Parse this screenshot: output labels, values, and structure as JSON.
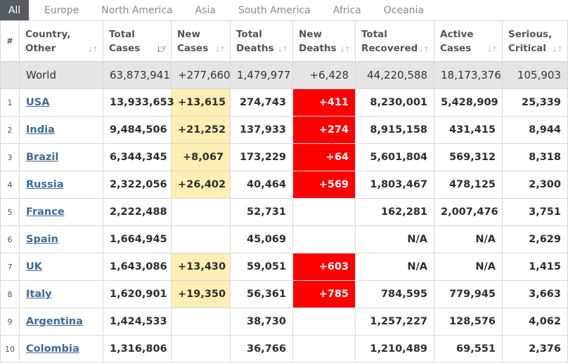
{
  "tabs": [
    "All",
    "Europe",
    "North America",
    "Asia",
    "South America",
    "Africa",
    "Oceania"
  ],
  "headers": {
    "num": "#",
    "country": [
      "Country,",
      "Other"
    ],
    "total_cases": [
      "Total",
      "Cases"
    ],
    "new_cases": [
      "New",
      "Cases"
    ],
    "total_deaths": [
      "Total",
      "Deaths"
    ],
    "new_deaths": [
      "New",
      "Deaths"
    ],
    "total_recovered": [
      "Total",
      "Recovered"
    ],
    "active_cases": [
      "Active",
      "Cases"
    ],
    "serious_critical": [
      "Serious,",
      "Critical"
    ]
  },
  "world": {
    "country": "World",
    "total_cases": "63,873,941",
    "new_cases": "+277,660",
    "total_deaths": "1,479,977",
    "new_deaths": "+6,428",
    "total_recovered": "44,220,588",
    "active_cases": "18,173,376",
    "serious_critical": "105,903"
  },
  "rows": [
    {
      "rank": "1",
      "country": "USA",
      "total_cases": "13,933,653",
      "new_cases": "+13,615",
      "total_deaths": "274,743",
      "new_deaths": "+411",
      "total_recovered": "8,230,001",
      "active_cases": "5,428,909",
      "serious_critical": "25,339"
    },
    {
      "rank": "2",
      "country": "India",
      "total_cases": "9,484,506",
      "new_cases": "+21,252",
      "total_deaths": "137,933",
      "new_deaths": "+274",
      "total_recovered": "8,915,158",
      "active_cases": "431,415",
      "serious_critical": "8,944"
    },
    {
      "rank": "3",
      "country": "Brazil",
      "total_cases": "6,344,345",
      "new_cases": "+8,067",
      "total_deaths": "173,229",
      "new_deaths": "+64",
      "total_recovered": "5,601,804",
      "active_cases": "569,312",
      "serious_critical": "8,318"
    },
    {
      "rank": "4",
      "country": "Russia",
      "total_cases": "2,322,056",
      "new_cases": "+26,402",
      "total_deaths": "40,464",
      "new_deaths": "+569",
      "total_recovered": "1,803,467",
      "active_cases": "478,125",
      "serious_critical": "2,300"
    },
    {
      "rank": "5",
      "country": "France",
      "total_cases": "2,222,488",
      "new_cases": "",
      "total_deaths": "52,731",
      "new_deaths": "",
      "total_recovered": "162,281",
      "active_cases": "2,007,476",
      "serious_critical": "3,751"
    },
    {
      "rank": "6",
      "country": "Spain",
      "total_cases": "1,664,945",
      "new_cases": "",
      "total_deaths": "45,069",
      "new_deaths": "",
      "total_recovered": "N/A",
      "active_cases": "N/A",
      "serious_critical": "2,629"
    },
    {
      "rank": "7",
      "country": "UK",
      "total_cases": "1,643,086",
      "new_cases": "+13,430",
      "total_deaths": "59,051",
      "new_deaths": "+603",
      "total_recovered": "N/A",
      "active_cases": "N/A",
      "serious_critical": "1,415"
    },
    {
      "rank": "8",
      "country": "Italy",
      "total_cases": "1,620,901",
      "new_cases": "+19,350",
      "total_deaths": "56,361",
      "new_deaths": "+785",
      "total_recovered": "784,595",
      "active_cases": "779,945",
      "serious_critical": "3,663"
    },
    {
      "rank": "9",
      "country": "Argentina",
      "total_cases": "1,424,533",
      "new_cases": "",
      "total_deaths": "38,730",
      "new_deaths": "",
      "total_recovered": "1,257,227",
      "active_cases": "128,576",
      "serious_critical": "4,062"
    },
    {
      "rank": "10",
      "country": "Colombia",
      "total_cases": "1,316,806",
      "new_cases": "",
      "total_deaths": "36,766",
      "new_deaths": "",
      "total_recovered": "1,210,489",
      "active_cases": "69,551",
      "serious_critical": "2,376"
    }
  ],
  "colors": {
    "new_cases_highlight": "#fcefb4",
    "new_deaths_highlight": "#ff0000",
    "world_row": "#e5e5e5",
    "active_tab": "#555b63",
    "country_link": "#3d6b98"
  }
}
